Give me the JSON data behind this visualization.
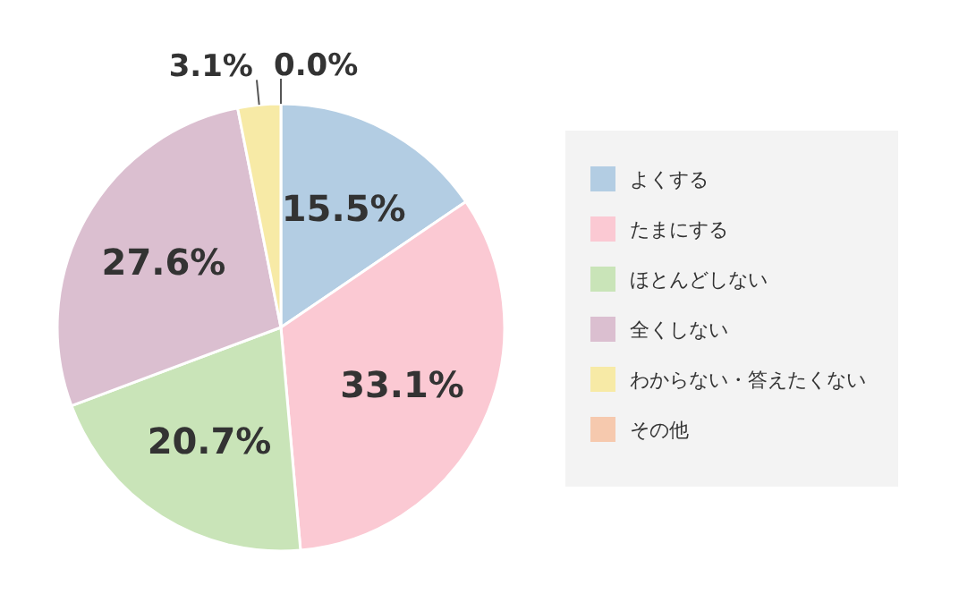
{
  "chart_data": {
    "type": "pie",
    "categories": [
      "よくする",
      "たまにする",
      "ほとんどしない",
      "全くしない",
      "わからない・答えたくない",
      "その他"
    ],
    "values": [
      15.5,
      33.1,
      20.7,
      27.6,
      3.1,
      0.0
    ],
    "colors": [
      "#b3cde3",
      "#fbc9d3",
      "#c9e4b8",
      "#dbbfd0",
      "#f7eaa6",
      "#f6c9ae"
    ],
    "value_labels": [
      "15.5%",
      "33.1%",
      "20.7%",
      "27.6%",
      "3.1%",
      "0.0%"
    ],
    "legend": "right"
  }
}
